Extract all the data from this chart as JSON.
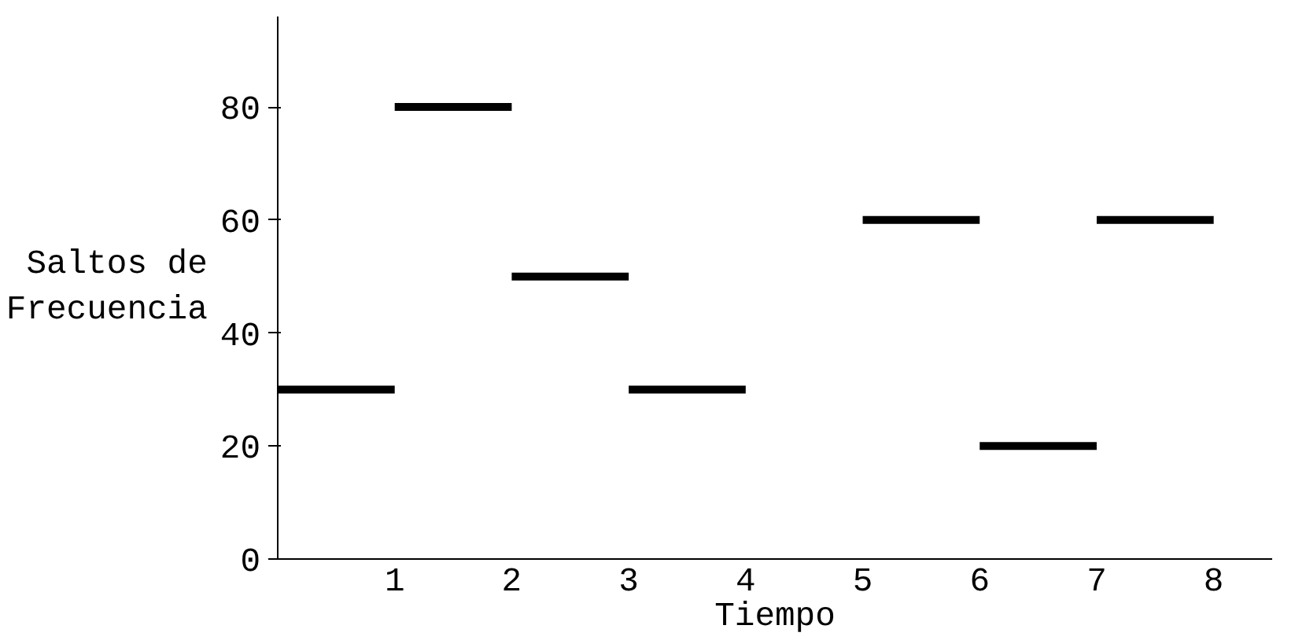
{
  "chart_data": {
    "type": "line",
    "xlabel": "Tiempo",
    "ylabel": "Saltos de\nFrecuencia",
    "series": [
      {
        "color": "#000000",
        "x": [
          0,
          1
        ],
        "values": [
          30,
          30
        ]
      },
      {
        "color": "#000000",
        "x": [
          1,
          2
        ],
        "values": [
          80,
          80
        ]
      },
      {
        "color": "#000000",
        "x": [
          2,
          3
        ],
        "values": [
          50,
          50
        ]
      },
      {
        "color": "#000000",
        "x": [
          3,
          4
        ],
        "values": [
          30,
          30
        ]
      },
      {
        "color": "#000000",
        "x": [
          5,
          6
        ],
        "values": [
          60,
          60
        ]
      },
      {
        "color": "#000000",
        "x": [
          6,
          7
        ],
        "values": [
          20,
          20
        ]
      },
      {
        "color": "#000000",
        "x": [
          7,
          8
        ],
        "values": [
          60,
          60
        ]
      }
    ],
    "xlim": [
      0,
      8.5
    ],
    "ylim": [
      0,
      96
    ],
    "xticks": [
      1,
      2,
      3,
      4,
      5,
      6,
      7,
      8
    ],
    "yticks": [
      0,
      20,
      40,
      60,
      80
    ],
    "grid": false,
    "line_style": "solid"
  }
}
